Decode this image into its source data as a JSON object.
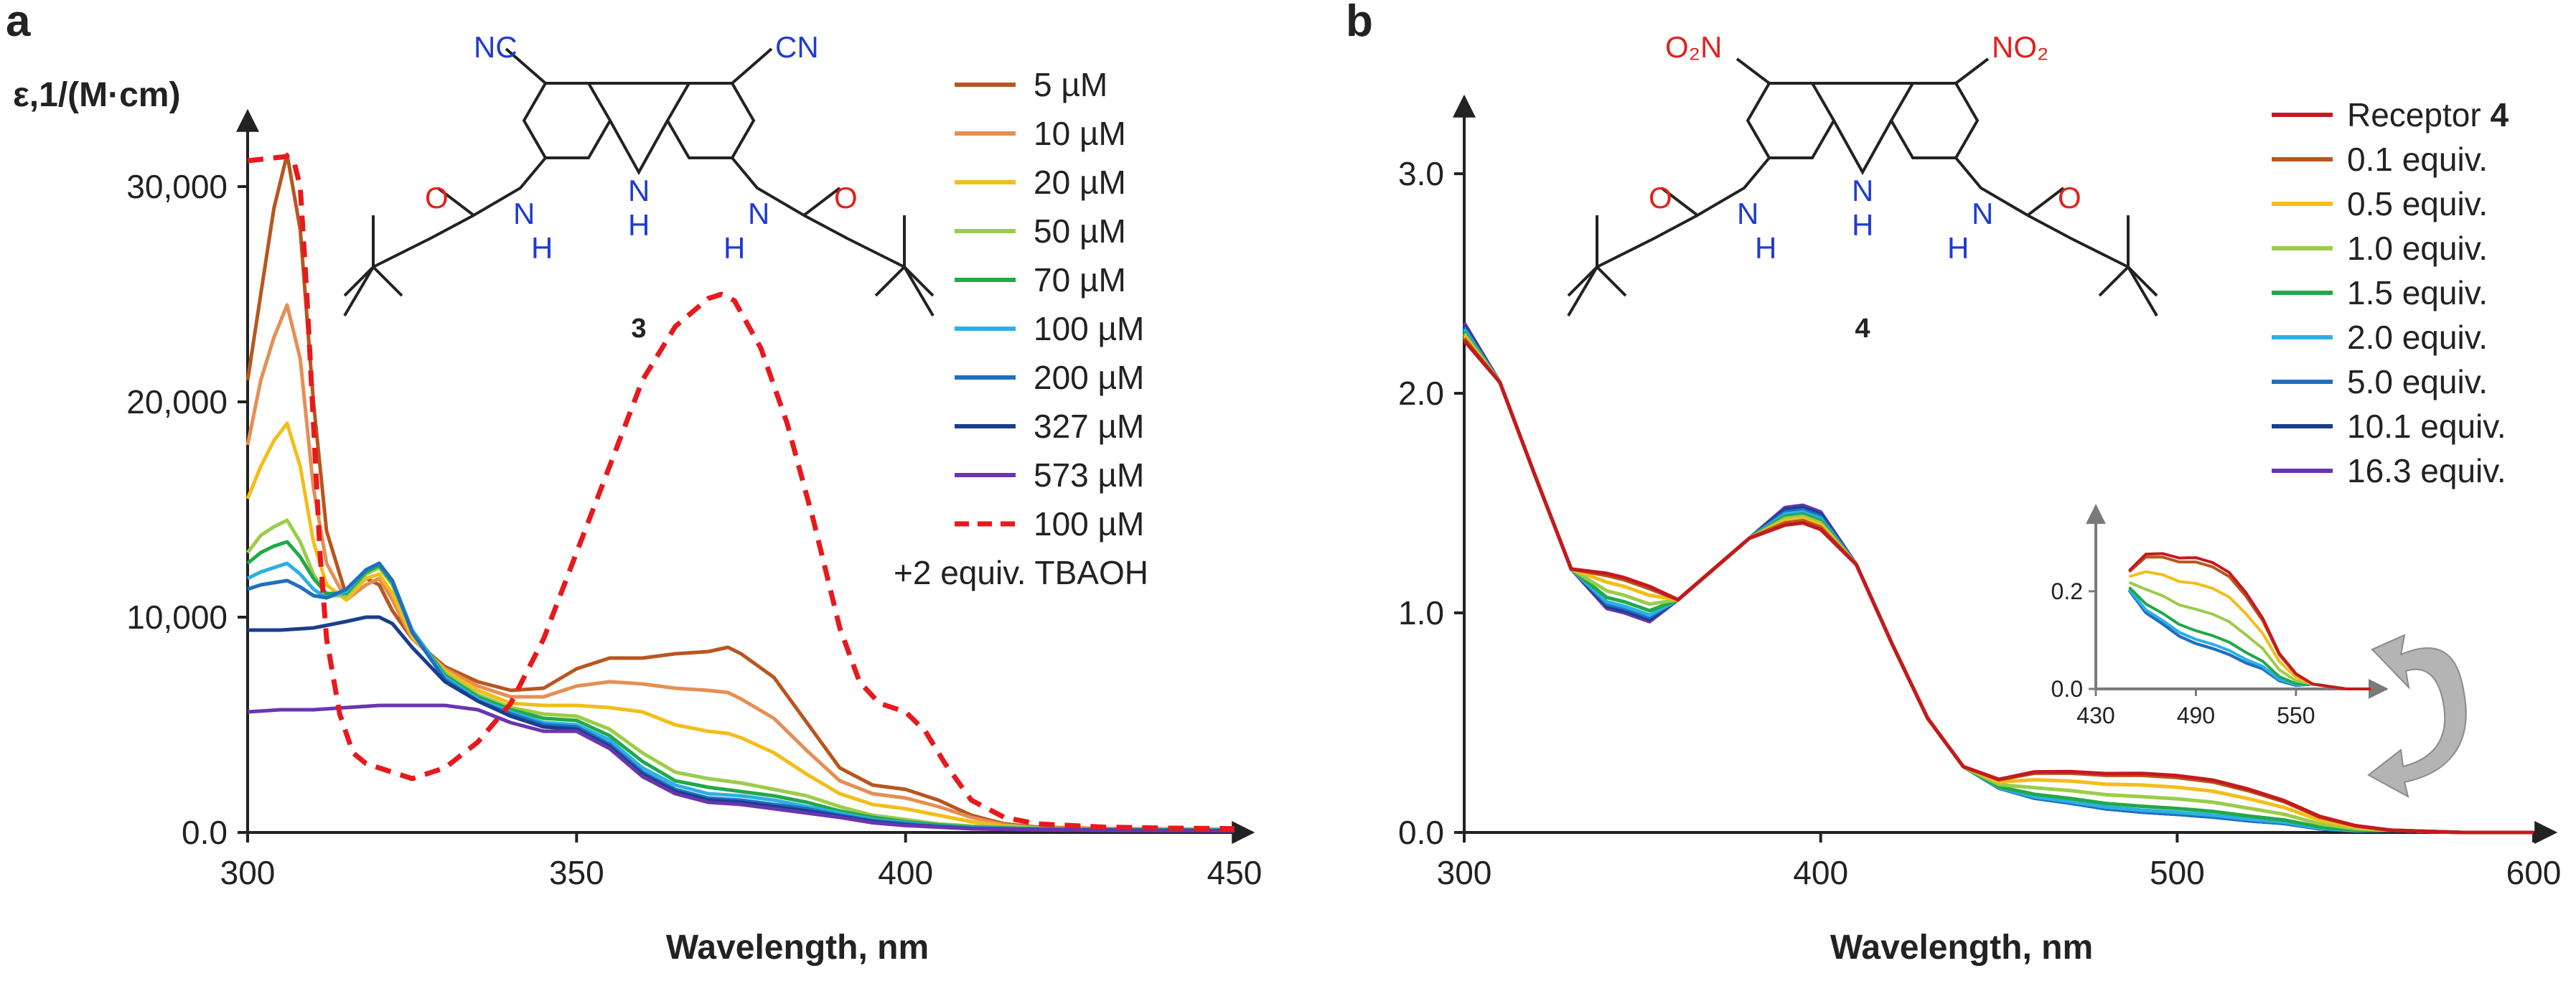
{
  "colors": {
    "axis": "#222222",
    "nitrogen": "#1f3ccf",
    "oxygen": "#e0221b",
    "bond": "#222222",
    "arrow": "#b4b4b4"
  },
  "panels": {
    "a": {
      "letter": "a",
      "compound_label": "3",
      "atoms": {
        "cn_left": "NC",
        "cn_right": "CN",
        "o_left": "O",
        "o_right": "O",
        "n_amide_left": "N",
        "n_amide_right": "N",
        "n_ring": "N",
        "h_ring": "H",
        "h_amide_left": "H",
        "h_amide_right": "H"
      }
    },
    "b": {
      "letter": "b",
      "compound_label": "4",
      "atoms": {
        "no2_left": "O₂N",
        "no2_right": "NO₂",
        "o_left": "O",
        "o_right": "O",
        "n_amide_left": "N",
        "n_amide_right": "N",
        "n_ring": "N",
        "h_ring": "H",
        "h_amide_left": "H",
        "h_amide_right": "H"
      }
    }
  },
  "chart_data": [
    {
      "id": "a",
      "type": "line",
      "title": "",
      "xlabel": "Wavelength, nm",
      "ylabel": "ε,1/(M·cm)",
      "xlim": [
        300,
        450
      ],
      "ylim": [
        0,
        33500
      ],
      "xticks": [
        300,
        350,
        400,
        450
      ],
      "xtick_labels": [
        "300",
        "350",
        "400",
        "450"
      ],
      "yticks": [
        0,
        10000,
        20000,
        30000
      ],
      "ytick_labels": [
        "0.0",
        "10,000",
        "20,000",
        "30,000"
      ],
      "legend_extra": "+2 equiv. TBAOH",
      "series": [
        {
          "name": "5 µM",
          "color": "#b8561f",
          "dash": false,
          "x": [
            300,
            302,
            304,
            306,
            308,
            310,
            312,
            315,
            318,
            320,
            322,
            325,
            330,
            335,
            340,
            345,
            350,
            355,
            360,
            365,
            370,
            373,
            375,
            380,
            385,
            390,
            395,
            400,
            405,
            410,
            415,
            420,
            430,
            440,
            450
          ],
          "y": [
            21000,
            25000,
            29000,
            31500,
            28000,
            20000,
            14000,
            11000,
            11800,
            11500,
            10300,
            9000,
            7700,
            7000,
            6600,
            6700,
            7600,
            8100,
            8100,
            8300,
            8400,
            8600,
            8300,
            7200,
            5100,
            3000,
            2200,
            2000,
            1500,
            800,
            400,
            250,
            180,
            160,
            150
          ]
        },
        {
          "name": "10 µM",
          "color": "#e58f55",
          "dash": false,
          "x": [
            300,
            302,
            304,
            306,
            308,
            310,
            312,
            315,
            318,
            320,
            322,
            325,
            330,
            335,
            340,
            345,
            350,
            355,
            360,
            365,
            370,
            373,
            375,
            380,
            385,
            390,
            395,
            400,
            405,
            410,
            415,
            420,
            430,
            440,
            450
          ],
          "y": [
            18000,
            21000,
            23000,
            24500,
            22000,
            16000,
            12500,
            10800,
            11500,
            11800,
            10800,
            9000,
            7600,
            6800,
            6300,
            6300,
            6800,
            7000,
            6900,
            6700,
            6600,
            6500,
            6200,
            5300,
            3800,
            2400,
            1800,
            1600,
            1200,
            700,
            350,
            220,
            170,
            150,
            140
          ]
        },
        {
          "name": "20 µM",
          "color": "#f2be1a",
          "dash": false,
          "x": [
            300,
            302,
            304,
            306,
            308,
            310,
            312,
            315,
            318,
            320,
            322,
            325,
            330,
            335,
            340,
            345,
            350,
            355,
            360,
            365,
            370,
            373,
            375,
            380,
            385,
            390,
            395,
            400,
            405,
            410,
            415,
            420,
            430,
            440,
            450
          ],
          "y": [
            15500,
            17000,
            18200,
            19000,
            17000,
            13500,
            11500,
            10800,
            11800,
            12000,
            11100,
            9100,
            7500,
            6600,
            6000,
            5900,
            5900,
            5800,
            5600,
            5000,
            4700,
            4600,
            4400,
            3700,
            2700,
            1800,
            1300,
            1100,
            800,
            500,
            300,
            200,
            160,
            140,
            130
          ]
        },
        {
          "name": "50 µM",
          "color": "#9ccc4a",
          "dash": false,
          "x": [
            300,
            302,
            304,
            306,
            308,
            310,
            312,
            315,
            318,
            320,
            322,
            325,
            330,
            335,
            340,
            345,
            350,
            355,
            360,
            365,
            370,
            375,
            380,
            385,
            390,
            395,
            400,
            405,
            410,
            420,
            430,
            440,
            450
          ],
          "y": [
            13000,
            13800,
            14200,
            14500,
            13500,
            12000,
            11000,
            11000,
            12000,
            12300,
            11500,
            9300,
            7400,
            6400,
            5800,
            5500,
            5400,
            4800,
            3700,
            2800,
            2500,
            2300,
            2000,
            1700,
            1200,
            800,
            600,
            400,
            300,
            200,
            150,
            130,
            120
          ]
        },
        {
          "name": "70 µM",
          "color": "#22a84a",
          "dash": false,
          "x": [
            300,
            302,
            304,
            306,
            308,
            310,
            312,
            315,
            318,
            320,
            322,
            325,
            330,
            335,
            340,
            345,
            350,
            355,
            360,
            365,
            370,
            375,
            380,
            385,
            390,
            395,
            400,
            405,
            410,
            420,
            430,
            440,
            450
          ],
          "y": [
            12500,
            13000,
            13300,
            13500,
            12800,
            11800,
            11100,
            11100,
            12100,
            12400,
            11600,
            9400,
            7300,
            6300,
            5700,
            5300,
            5200,
            4500,
            3300,
            2400,
            2100,
            1900,
            1700,
            1400,
            1000,
            700,
            500,
            350,
            250,
            180,
            140,
            120,
            110
          ]
        },
        {
          "name": "100 µM",
          "color": "#2bb0e5",
          "dash": false,
          "x": [
            300,
            302,
            304,
            306,
            308,
            310,
            312,
            315,
            318,
            320,
            322,
            325,
            330,
            335,
            340,
            345,
            350,
            355,
            360,
            365,
            370,
            375,
            380,
            385,
            390,
            395,
            400,
            405,
            410,
            420,
            430,
            440,
            450
          ],
          "y": [
            11800,
            12100,
            12300,
            12500,
            12000,
            11300,
            10900,
            11200,
            12200,
            12500,
            11700,
            9400,
            7200,
            6200,
            5600,
            5100,
            5000,
            4300,
            3000,
            2200,
            1800,
            1700,
            1500,
            1200,
            900,
            600,
            450,
            300,
            220,
            170,
            130,
            110,
            100
          ]
        },
        {
          "name": "200 µM",
          "color": "#1f6fc0",
          "dash": false,
          "x": [
            300,
            302,
            304,
            306,
            308,
            310,
            312,
            315,
            318,
            320,
            322,
            325,
            330,
            335,
            340,
            345,
            350,
            355,
            360,
            365,
            370,
            375,
            380,
            385,
            390,
            395,
            400,
            405,
            410,
            420,
            430,
            440,
            450
          ],
          "y": [
            11300,
            11500,
            11600,
            11700,
            11400,
            11000,
            10900,
            11300,
            12200,
            12500,
            11700,
            9300,
            7100,
            6100,
            5500,
            5000,
            4900,
            4100,
            2800,
            2000,
            1600,
            1500,
            1300,
            1100,
            800,
            550,
            400,
            280,
            200,
            150,
            120,
            100,
            90
          ]
        },
        {
          "name": "327 µM",
          "color": "#1a3e8e",
          "dash": false,
          "x": [
            300,
            305,
            310,
            315,
            318,
            320,
            322,
            325,
            330,
            335,
            340,
            345,
            350,
            355,
            360,
            365,
            370,
            375,
            380,
            385,
            390,
            395,
            400,
            410,
            420,
            430,
            440,
            450
          ],
          "y": [
            9400,
            9400,
            9500,
            9800,
            10000,
            10000,
            9700,
            8600,
            7000,
            6100,
            5400,
            4900,
            4800,
            4000,
            2700,
            1900,
            1500,
            1400,
            1200,
            1000,
            750,
            500,
            350,
            180,
            130,
            100,
            90,
            80
          ]
        },
        {
          "name": "573 µM",
          "color": "#6a35b0",
          "dash": false,
          "x": [
            300,
            305,
            310,
            315,
            320,
            325,
            330,
            335,
            340,
            345,
            350,
            355,
            360,
            365,
            370,
            375,
            380,
            385,
            390,
            395,
            400,
            410,
            420,
            430,
            440,
            450
          ],
          "y": [
            5600,
            5700,
            5700,
            5800,
            5900,
            5900,
            5900,
            5700,
            5100,
            4700,
            4700,
            3900,
            2600,
            1800,
            1400,
            1300,
            1100,
            900,
            700,
            450,
            320,
            170,
            120,
            90,
            80,
            70
          ]
        },
        {
          "name": "100 µM",
          "color": "#e8191c",
          "dash": true,
          "x": [
            300,
            303,
            306,
            307,
            308,
            309,
            310,
            311,
            312,
            314,
            316,
            318,
            320,
            325,
            330,
            335,
            340,
            345,
            350,
            355,
            360,
            365,
            370,
            372,
            374,
            378,
            382,
            386,
            390,
            393,
            396,
            400,
            403,
            406,
            410,
            415,
            420,
            430,
            440,
            450
          ],
          "y": [
            31200,
            31300,
            31400,
            31200,
            30000,
            25000,
            19000,
            13000,
            9000,
            5500,
            3700,
            3200,
            3000,
            2500,
            3000,
            4200,
            6000,
            9000,
            13000,
            17000,
            21000,
            23500,
            24800,
            25000,
            24700,
            22500,
            19000,
            14500,
            9500,
            7000,
            6000,
            5600,
            4700,
            3200,
            1500,
            700,
            400,
            250,
            200,
            180
          ]
        }
      ]
    },
    {
      "id": "b",
      "type": "line",
      "title": "",
      "xlabel": "Wavelength, nm",
      "ylabel": "",
      "xlim": [
        300,
        600
      ],
      "ylim": [
        0,
        3.35
      ],
      "xticks": [
        300,
        400,
        500,
        600
      ],
      "xtick_labels": [
        "300",
        "400",
        "500",
        "600"
      ],
      "yticks": [
        0,
        1,
        2,
        3
      ],
      "ytick_labels": [
        "0.0",
        "1.0",
        "2.0",
        "3.0"
      ],
      "legend_receptor_name": "Receptor",
      "legend_receptor_number": "4",
      "series": [
        {
          "name": "Receptor 4",
          "color": "#c41a1f",
          "y300": 2.24,
          "y345": 1.16,
          "y395": 1.41,
          "plateau": 0.26
        },
        {
          "name": "0.1 equiv.",
          "color": "#b8561f",
          "y300": 2.25,
          "y345": 1.15,
          "y395": 1.42,
          "plateau": 0.25
        },
        {
          "name": "0.5 equiv.",
          "color": "#f2be1a",
          "y300": 2.26,
          "y345": 1.12,
          "y395": 1.43,
          "plateau": 0.2
        },
        {
          "name": "1.0 equiv.",
          "color": "#9ccc4a",
          "y300": 2.27,
          "y345": 1.08,
          "y395": 1.44,
          "plateau": 0.14
        },
        {
          "name": "1.5 equiv.",
          "color": "#22a84a",
          "y300": 2.28,
          "y345": 1.05,
          "y395": 1.45,
          "plateau": 0.09
        },
        {
          "name": "2.0 equiv.",
          "color": "#2bb0e5",
          "y300": 2.29,
          "y345": 1.03,
          "y395": 1.46,
          "plateau": 0.07
        },
        {
          "name": "5.0 equiv.",
          "color": "#1f6fc0",
          "y300": 2.3,
          "y345": 1.02,
          "y395": 1.47,
          "plateau": 0.06
        },
        {
          "name": "10.1 equiv.",
          "color": "#1a3e8e",
          "y300": 2.31,
          "y345": 1.01,
          "y395": 1.48,
          "plateau": 0.06
        },
        {
          "name": "16.3 equiv.",
          "color": "#6a35b0",
          "y300": 2.32,
          "y345": 1.0,
          "y395": 1.49,
          "plateau": 0.06
        }
      ],
      "inset": {
        "xlim": [
          430,
          600
        ],
        "ylim": [
          0,
          0.36
        ],
        "xticks": [
          430,
          490,
          550
        ],
        "xtick_labels": [
          "430",
          "490",
          "550"
        ],
        "yticks": [
          0,
          0.2
        ],
        "ytick_labels": [
          "0.0",
          "0.2"
        ]
      }
    }
  ]
}
